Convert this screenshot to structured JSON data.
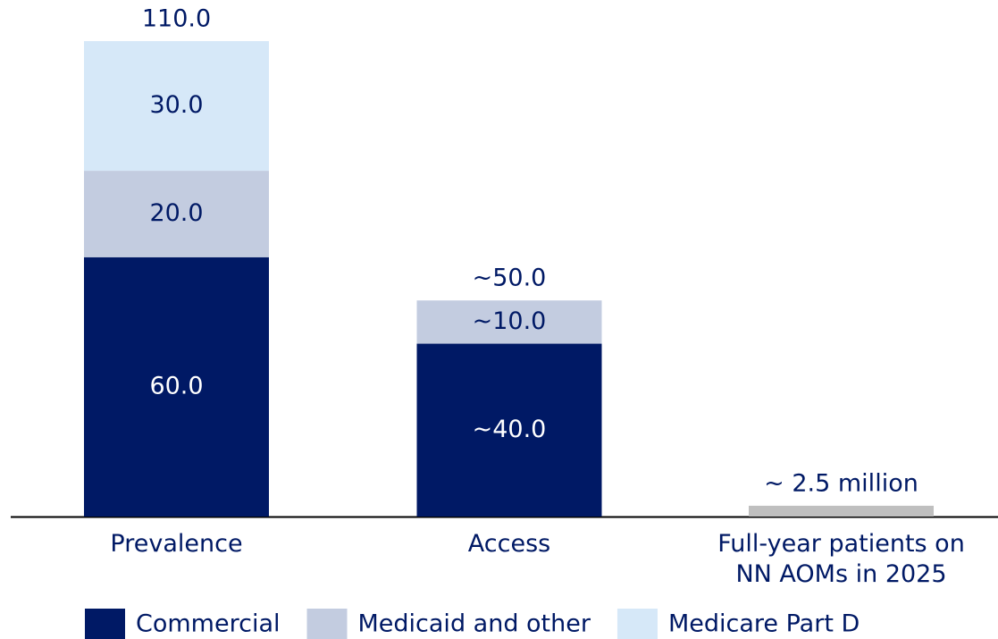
{
  "chart_data": {
    "type": "stacked_bar",
    "categories": [
      "Prevalence",
      "Access",
      "Full-year patients on\nNN AOMs in 2025"
    ],
    "series": [
      {
        "name": "Commercial",
        "color": "#001965",
        "label_color": "#ffffff",
        "values": [
          60,
          40,
          null
        ],
        "value_labels": [
          "60.0",
          "~40.0",
          null
        ]
      },
      {
        "name": "Medicaid and other",
        "color": "#c3cce0",
        "label_color": "#001965",
        "values": [
          20,
          10,
          null
        ],
        "value_labels": [
          "20.0",
          "~10.0",
          null
        ]
      },
      {
        "name": "Medicare Part D",
        "color": "#d6e8f8",
        "label_color": "#001965",
        "values": [
          30,
          null,
          null
        ],
        "value_labels": [
          "30.0",
          null,
          null
        ]
      },
      {
        "color": "#bfbfbf",
        "label_color": "#001965",
        "values": [
          null,
          null,
          2.5
        ],
        "value_labels": [
          null,
          null,
          "~ 2.5 million"
        ]
      }
    ],
    "totals": [
      110,
      50,
      null
    ],
    "total_labels": [
      "110.0",
      "~50.0",
      null
    ],
    "ylim": [
      0,
      110
    ]
  }
}
